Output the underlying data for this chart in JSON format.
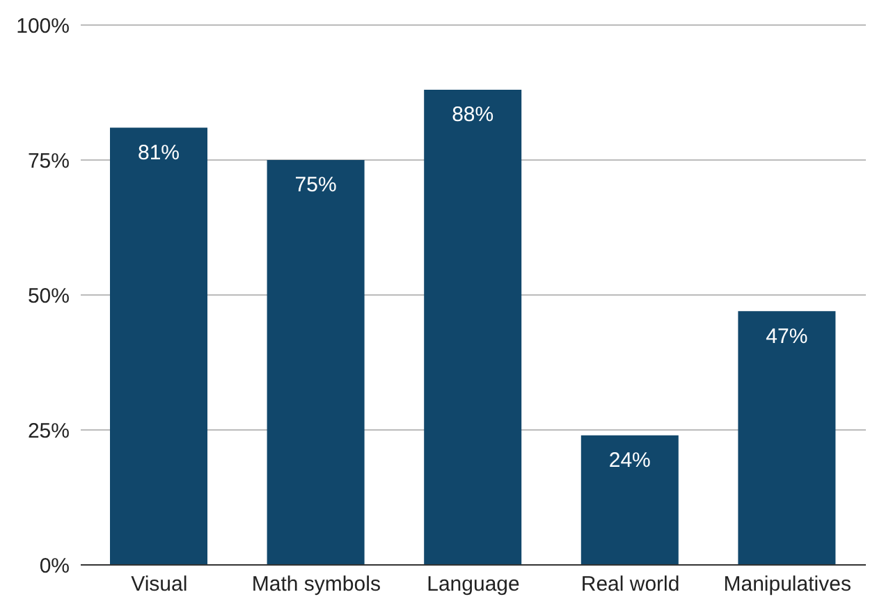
{
  "chart_data": {
    "type": "bar",
    "categories": [
      "Visual",
      "Math symbols",
      "Language",
      "Real world",
      "Manipulatives"
    ],
    "values": [
      81,
      75,
      88,
      24,
      47
    ],
    "value_labels": [
      "81%",
      "75%",
      "88%",
      "24%",
      "47%"
    ],
    "color": "#11476b",
    "ylim": [
      0,
      100
    ],
    "yticks": [
      {
        "value": 0,
        "label": "0%"
      },
      {
        "value": 25,
        "label": "25%"
      },
      {
        "value": 50,
        "label": "50%"
      },
      {
        "value": 75,
        "label": "75%"
      },
      {
        "value": 100,
        "label": "100%"
      }
    ],
    "grid": "y"
  }
}
